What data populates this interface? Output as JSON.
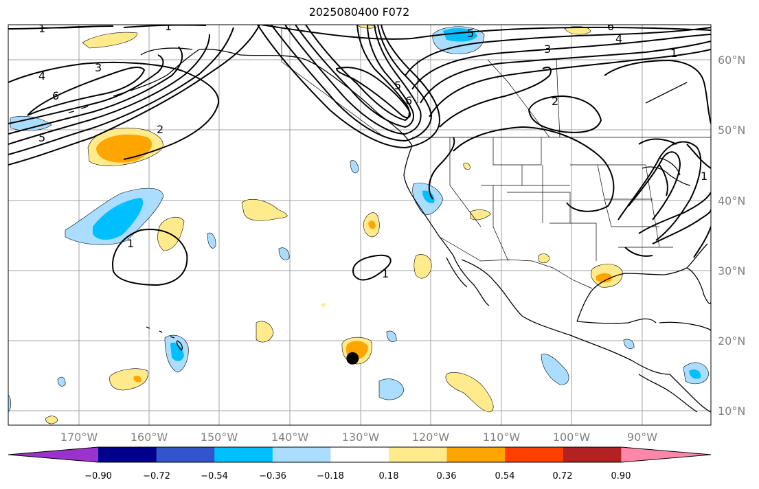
{
  "title": "2025080400 F072",
  "map": {
    "lon_range": [
      -180,
      -80
    ],
    "lat_range": [
      8,
      65
    ],
    "lon_ticks": [
      "170°W",
      "160°W",
      "150°W",
      "140°W",
      "130°W",
      "120°W",
      "110°W",
      "100°W",
      "90°W"
    ],
    "lat_ticks": [
      "60°N",
      "50°N",
      "40°N",
      "30°N",
      "20°N",
      "10°N"
    ],
    "gridlines": true,
    "contour_labels": [
      "1",
      "1",
      "4",
      "3",
      "6",
      "5",
      "2",
      "1",
      "1",
      "5",
      "6",
      "3",
      "4",
      "1",
      "6",
      "5",
      "2",
      "1"
    ],
    "marker": {
      "lon": -131,
      "lat": 17.5,
      "color": "#000000"
    }
  },
  "colorbar": {
    "ticks": [
      "−0.90",
      "−0.72",
      "−0.54",
      "−0.36",
      "−0.18",
      "0.18",
      "0.36",
      "0.54",
      "0.72",
      "0.90"
    ],
    "colors": [
      "#9933cc",
      "#00008b",
      "#3355cc",
      "#00bfff",
      "#aaddff",
      "#ffffff",
      "#ffeb8c",
      "#ffa500",
      "#ff4000",
      "#b22222",
      "#ff88aa"
    ]
  },
  "colors": {
    "pos1": "#ffeb8c",
    "pos2": "#ffa500",
    "neg1": "#aaddff",
    "neg2": "#00bfff"
  }
}
